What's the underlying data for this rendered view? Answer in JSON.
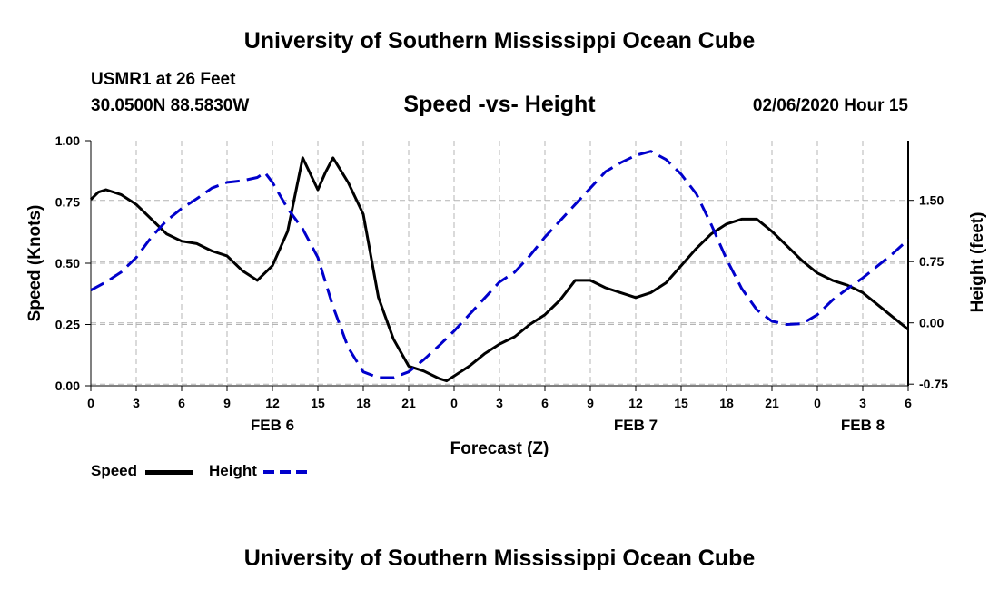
{
  "header": {
    "title": "University of Southern Mississippi Ocean Cube",
    "station": "USMR1 at 26 Feet",
    "coords": "30.0500N 88.5830W",
    "chart_title": "Speed -vs- Height",
    "datetime": "02/06/2020 Hour 15"
  },
  "legend": {
    "speed_label": "Speed",
    "height_label": "Height"
  },
  "footer": {
    "title": "University of Southern Mississippi Ocean Cube"
  },
  "colors": {
    "speed": "#000000",
    "height": "#0000cc",
    "grid": "#b4b4b4"
  },
  "chart_data": {
    "type": "line",
    "title": "Speed -vs- Height",
    "xlabel": "Forecast (Z)",
    "ylabel": "Speed (Knots)",
    "y2label": "Height (feet)",
    "xlim": [
      0,
      54
    ],
    "ylim": [
      0,
      1
    ],
    "y2lim": [
      -0.77,
      2.23
    ],
    "grid": true,
    "x_ticks": [
      0,
      3,
      6,
      9,
      12,
      15,
      18,
      21,
      24,
      27,
      30,
      33,
      36,
      39,
      42,
      45,
      48,
      51,
      54
    ],
    "x_tick_labels": [
      "0",
      "3",
      "6",
      "9",
      "12",
      "15",
      "18",
      "21",
      "0",
      "3",
      "6",
      "9",
      "12",
      "15",
      "18",
      "21",
      "0",
      "3",
      "6"
    ],
    "y_ticks": [
      0,
      0.25,
      0.5,
      0.75,
      1.0
    ],
    "y_tick_labels": [
      "0.00",
      "0.25",
      "0.50",
      "0.75",
      "1.00"
    ],
    "y2_ticks": [
      -0.75,
      0.0,
      0.75,
      1.5
    ],
    "y2_tick_labels": [
      "-0.75",
      "0.00",
      "0.75",
      "1.50"
    ],
    "date_labels": [
      {
        "x": 12,
        "label": "FEB 6"
      },
      {
        "x": 36,
        "label": "FEB 7"
      },
      {
        "x": 51,
        "label": "FEB 8"
      }
    ],
    "series": [
      {
        "name": "Speed",
        "axis": "left",
        "style": "solid",
        "x": [
          0,
          0.5,
          1,
          2,
          3,
          4,
          5,
          6,
          7,
          8,
          9,
          10,
          11,
          12,
          13,
          14,
          15,
          15.5,
          16,
          17,
          18,
          19,
          20,
          21,
          22,
          23,
          23.5,
          24,
          25,
          26,
          27,
          28,
          29,
          30,
          31,
          32,
          33,
          34,
          35,
          36,
          37,
          38,
          39,
          40,
          41,
          42,
          43,
          44,
          45,
          46,
          47,
          48,
          49,
          50,
          51,
          52,
          53,
          54
        ],
        "values": [
          0.76,
          0.79,
          0.8,
          0.78,
          0.74,
          0.68,
          0.62,
          0.59,
          0.58,
          0.55,
          0.53,
          0.47,
          0.43,
          0.49,
          0.63,
          0.93,
          0.8,
          0.87,
          0.93,
          0.83,
          0.7,
          0.36,
          0.19,
          0.08,
          0.06,
          0.03,
          0.02,
          0.04,
          0.08,
          0.13,
          0.17,
          0.2,
          0.25,
          0.29,
          0.35,
          0.43,
          0.43,
          0.4,
          0.38,
          0.36,
          0.38,
          0.42,
          0.49,
          0.56,
          0.62,
          0.66,
          0.68,
          0.68,
          0.63,
          0.57,
          0.51,
          0.46,
          0.43,
          0.41,
          0.38,
          0.33,
          0.28,
          0.23
        ]
      },
      {
        "name": "Height",
        "axis": "right",
        "style": "dashed",
        "x": [
          0,
          1,
          2,
          3,
          4,
          5,
          6,
          7,
          8,
          9,
          10,
          11,
          11.5,
          12,
          13,
          14,
          15,
          16,
          17,
          18,
          19,
          20,
          21,
          22,
          23,
          24,
          25,
          26,
          27,
          28,
          29,
          30,
          31,
          32,
          33,
          34,
          35,
          36,
          37,
          38,
          39,
          40,
          41,
          42,
          43,
          44,
          45,
          46,
          47,
          48,
          49,
          50,
          51,
          52,
          53,
          54
        ],
        "values": [
          0.4,
          0.5,
          0.62,
          0.8,
          1.05,
          1.25,
          1.4,
          1.52,
          1.65,
          1.72,
          1.74,
          1.78,
          1.84,
          1.72,
          1.4,
          1.15,
          0.8,
          0.2,
          -0.3,
          -0.6,
          -0.67,
          -0.67,
          -0.6,
          -0.45,
          -0.28,
          -0.1,
          0.1,
          0.3,
          0.5,
          0.62,
          0.82,
          1.05,
          1.25,
          1.45,
          1.65,
          1.85,
          1.96,
          2.05,
          2.1,
          2.0,
          1.82,
          1.58,
          1.2,
          0.78,
          0.42,
          0.16,
          0.02,
          -0.02,
          -0.01,
          0.1,
          0.28,
          0.42,
          0.55,
          0.7,
          0.85,
          1.02
        ]
      }
    ]
  }
}
